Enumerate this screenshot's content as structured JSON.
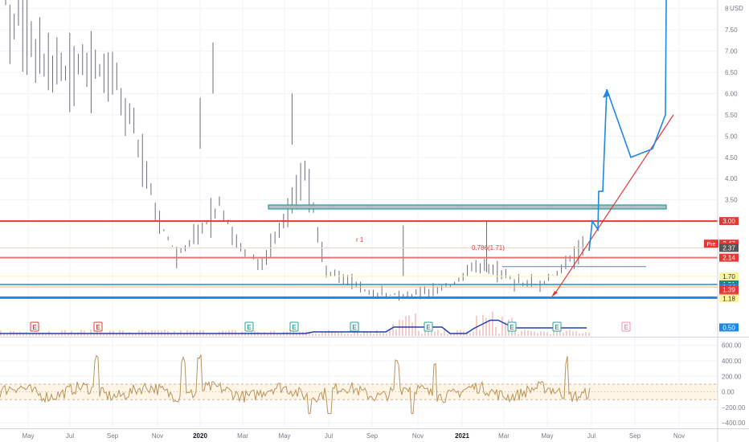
{
  "currency_label": "USD",
  "main_axis": {
    "ticks": [
      "8",
      "7.50",
      "7.00",
      "6.50",
      "6.00",
      "5.50",
      "5.00",
      "4.50",
      "4.00",
      "3.50"
    ],
    "min": 0.3,
    "max": 8.2
  },
  "price_tags": [
    {
      "value": 3.0,
      "label": "3.00",
      "color": "#e53935",
      "text_color": "#ffffff"
    },
    {
      "value": 2.47,
      "label": "2.47",
      "color": "#e53935",
      "text_color": "#ffffff",
      "prefix": "Pre"
    },
    {
      "value": 2.4,
      "label": "2.40",
      "color": "#e53935",
      "text_color": "#ffffff"
    },
    {
      "value": 2.37,
      "label": "2.37",
      "color": "#555555",
      "text_color": "#ffffff"
    },
    {
      "value": 2.14,
      "label": "2.14",
      "color": "#e53935",
      "text_color": "#ffffff"
    },
    {
      "value": 1.7,
      "label": "1.70",
      "color": "#fff59d",
      "text_color": "#333333"
    },
    {
      "value": 1.51,
      "label": "1.51",
      "color": "#009688",
      "text_color": "#ffffff"
    },
    {
      "value": 1.45,
      "label": "1.45",
      "color": "#555555",
      "text_color": "#ffffff"
    },
    {
      "value": 1.44,
      "label": "1.44",
      "color": "#1e88e5",
      "text_color": "#ffffff"
    },
    {
      "value": 1.39,
      "label": "1.39",
      "color": "#e53935",
      "text_color": "#ffffff"
    },
    {
      "value": 1.2,
      "label": "1.20",
      "color": "#e53935",
      "text_color": "#ffffff"
    },
    {
      "value": 1.18,
      "label": "1.18",
      "color": "#fff59d",
      "text_color": "#333333"
    },
    {
      "value": 0.5,
      "label": "0.50",
      "color": "#1e88e5",
      "text_color": "#ffffff"
    }
  ],
  "osc_axis": {
    "ticks": [
      "600.00",
      "400.00",
      "200.00",
      "0.00",
      "−200.00",
      "−400.00"
    ],
    "tick_values": [
      600,
      400,
      200,
      0,
      -200,
      -400
    ],
    "min": -460,
    "max": 690,
    "band": [
      100,
      -100
    ]
  },
  "x_axis": {
    "labels": [
      "May",
      "Jul",
      "Sep",
      "Nov",
      "2020",
      "Mar",
      "May",
      "Jul",
      "Sep",
      "Nov",
      "2021",
      "Mar",
      "May",
      "Jul",
      "Sep",
      "Nov"
    ],
    "bold": [
      "2020",
      "2021"
    ]
  },
  "annotations": {
    "r1": "r 1",
    "fib": "0.786(1.71)"
  },
  "event_markers": [
    {
      "label": "E",
      "color": "#e53935"
    },
    {
      "label": "E",
      "color": "#e53935"
    },
    {
      "label": "E",
      "color": "#26a69a"
    },
    {
      "label": "E",
      "color": "#26a69a"
    },
    {
      "label": "E",
      "color": "#26a69a"
    },
    {
      "label": "E",
      "color": "#26a69a"
    },
    {
      "label": "E",
      "color": "#26a69a"
    },
    {
      "label": "E",
      "color": "#26a69a"
    },
    {
      "label": "E",
      "color": "#f48fb1"
    }
  ],
  "chart_data": {
    "type": "line",
    "title": "",
    "xlabel": "",
    "ylabel": "",
    "y_unit": "USD",
    "ylim": [
      0.3,
      8.2
    ],
    "x": [
      "2019-04",
      "2019-05",
      "2019-06",
      "2019-07",
      "2019-08",
      "2019-09",
      "2019-10",
      "2019-11",
      "2019-12",
      "2020-01",
      "2020-02",
      "2020-03",
      "2020-04",
      "2020-05",
      "2020-06",
      "2020-07",
      "2020-08",
      "2020-09",
      "2020-10",
      "2020-11",
      "2020-12",
      "2021-01",
      "2021-02",
      "2021-03",
      "2021-04",
      "2021-05",
      "2021-06",
      "2021-07"
    ],
    "series": [
      {
        "values": [
          8.1,
          7.3,
          6.6,
          6.5,
          6.6,
          6.3,
          5.3,
          3.2,
          2.2,
          2.7,
          3.4,
          2.3,
          2.0,
          3.0,
          4.2,
          1.8,
          1.6,
          1.3,
          1.27,
          1.25,
          1.35,
          1.55,
          1.9,
          1.8,
          1.55,
          1.48,
          1.9,
          2.4
        ]
      }
    ],
    "horizontal_levels": [
      3.0,
      2.14,
      1.7,
      1.51,
      1.45,
      1.18
    ]
  }
}
